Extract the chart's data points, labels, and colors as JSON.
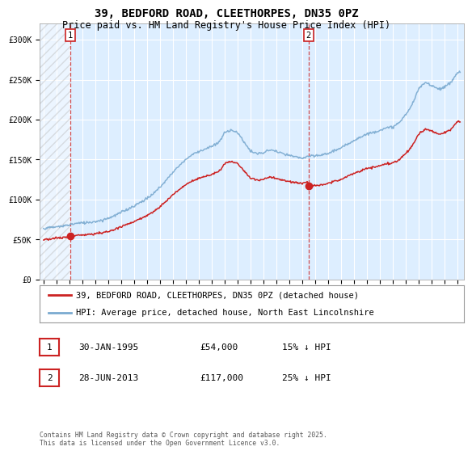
{
  "title": "39, BEDFORD ROAD, CLEETHORPES, DN35 0PZ",
  "subtitle": "Price paid vs. HM Land Registry's House Price Index (HPI)",
  "background_color": "#ffffff",
  "plot_bg_color": "#ddeeff",
  "hatch_end_year": 1995.08,
  "ylim": [
    0,
    320000
  ],
  "xlim_start": 1992.7,
  "xlim_end": 2025.5,
  "yticks": [
    0,
    50000,
    100000,
    150000,
    200000,
    250000,
    300000
  ],
  "ytick_labels": [
    "£0",
    "£50K",
    "£100K",
    "£150K",
    "£200K",
    "£250K",
    "£300K"
  ],
  "xticks": [
    1993,
    1994,
    1995,
    1996,
    1997,
    1998,
    1999,
    2000,
    2001,
    2002,
    2003,
    2004,
    2005,
    2006,
    2007,
    2008,
    2009,
    2010,
    2011,
    2012,
    2013,
    2014,
    2015,
    2016,
    2017,
    2018,
    2019,
    2020,
    2021,
    2022,
    2023,
    2024,
    2025
  ],
  "sale1_x": 1995.08,
  "sale1_y": 54000,
  "sale1_label": "1",
  "sale2_x": 2013.49,
  "sale2_y": 117000,
  "sale2_label": "2",
  "red_line_color": "#cc2222",
  "blue_line_color": "#7aaad0",
  "legend_line1": "39, BEDFORD ROAD, CLEETHORPES, DN35 0PZ (detached house)",
  "legend_line2": "HPI: Average price, detached house, North East Lincolnshire",
  "annotation1_date": "30-JAN-1995",
  "annotation1_price": "£54,000",
  "annotation1_hpi": "15% ↓ HPI",
  "annotation2_date": "28-JUN-2013",
  "annotation2_price": "£117,000",
  "annotation2_hpi": "25% ↓ HPI",
  "footer": "Contains HM Land Registry data © Crown copyright and database right 2025.\nThis data is licensed under the Open Government Licence v3.0.",
  "title_fontsize": 10,
  "subtitle_fontsize": 8.5,
  "tick_fontsize": 7,
  "legend_fontsize": 7.5,
  "annotation_fontsize": 8
}
